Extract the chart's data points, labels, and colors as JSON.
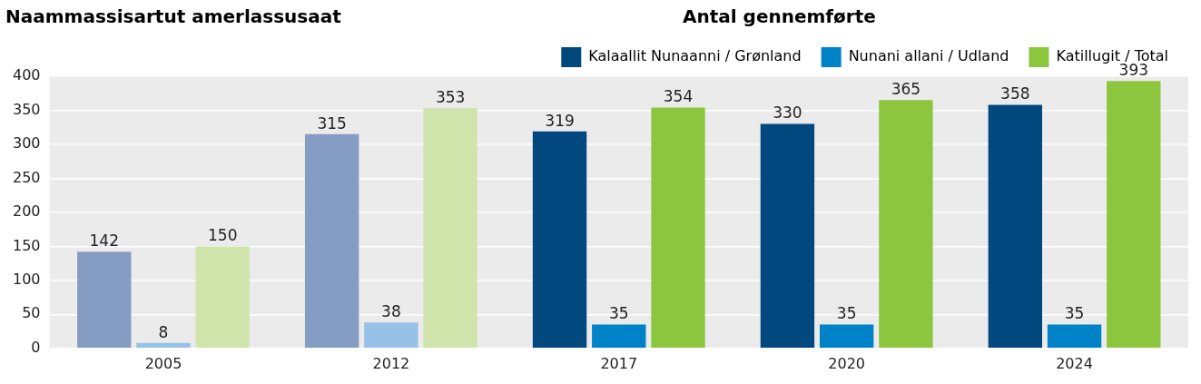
{
  "chart_data": {
    "type": "bar",
    "title": "Naammassisartut amerlassusaat",
    "subtitle": "Antal gennemførte",
    "categories": [
      "2005",
      "2012",
      "2017",
      "2020",
      "2024"
    ],
    "series": [
      {
        "name": "Kalaallit Nunaanni / Grønland",
        "color": "#00487e",
        "colors": [
          "#869dc3",
          "#869dc3",
          "#00487e",
          "#00487e",
          "#00487e"
        ],
        "values": [
          142,
          315,
          319,
          330,
          358
        ]
      },
      {
        "name": "Nunani allani / Udland",
        "color": "#0082c8",
        "colors": [
          "#97c1e7",
          "#97c1e7",
          "#0082c8",
          "#0082c8",
          "#0082c8"
        ],
        "values": [
          8,
          38,
          35,
          35,
          35
        ]
      },
      {
        "name": "Katillugit / Total",
        "color": "#8cc63f",
        "colors": [
          "#cfe5ac",
          "#cfe5ac",
          "#8cc63f",
          "#8cc63f",
          "#8cc63f"
        ],
        "values": [
          150,
          353,
          354,
          365,
          393
        ]
      }
    ],
    "ylim": [
      0,
      400
    ],
    "yticks": [
      0,
      50,
      100,
      150,
      200,
      250,
      300,
      350,
      400
    ],
    "grid": "y",
    "legend": "top right",
    "data_labels": true
  }
}
